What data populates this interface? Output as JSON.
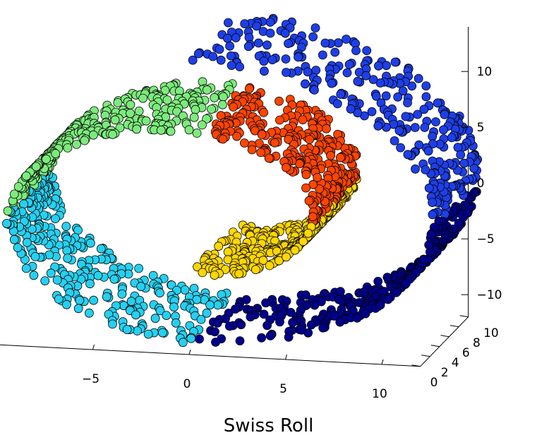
{
  "chart_data": {
    "type": "scatter",
    "title": "Swiss Roll",
    "xlabel": "",
    "ylabel": "",
    "zlabel": "",
    "projection": "3d",
    "grid": false,
    "legend": "none",
    "xlim": [
      -10,
      12
    ],
    "ylim": [
      0,
      10
    ],
    "zlim": [
      -12,
      14
    ],
    "x_ticks": [
      "−5",
      "0",
      "5",
      "10"
    ],
    "y_ticks": [
      "0",
      "2",
      "4",
      "6",
      "8",
      "10"
    ],
    "z_ticks": [
      "−10",
      "−5",
      "0",
      "5",
      "10"
    ],
    "x_tick_values": [
      -5,
      0,
      5,
      10
    ],
    "y_tick_values": [
      0,
      2,
      4,
      6,
      8,
      10
    ],
    "z_tick_values": [
      -10,
      -5,
      0,
      5,
      10
    ],
    "marker": "circle",
    "marker_edge_color": "#000000",
    "parametric_form": "x = t*cos(t), z = t*sin(t), y in [0, 10]",
    "t_range": [
      4.71,
      14.14
    ],
    "series": [
      {
        "t_range": [
          4.71,
          6.3
        ],
        "color": "#FFD700",
        "count": 300
      },
      {
        "t_range": [
          6.3,
          7.8
        ],
        "color": "#FF4500",
        "count": 300
      },
      {
        "t_range": [
          7.8,
          9.45
        ],
        "color": "#7CEB7C",
        "count": 300
      },
      {
        "t_range": [
          9.45,
          11.0
        ],
        "color": "#25D0F0",
        "count": 300
      },
      {
        "t_range": [
          11.0,
          12.6
        ],
        "color": "#00008B",
        "count": 300
      },
      {
        "t_range": [
          12.6,
          14.14
        ],
        "color": "#1E3FE8",
        "count": 300
      }
    ]
  }
}
